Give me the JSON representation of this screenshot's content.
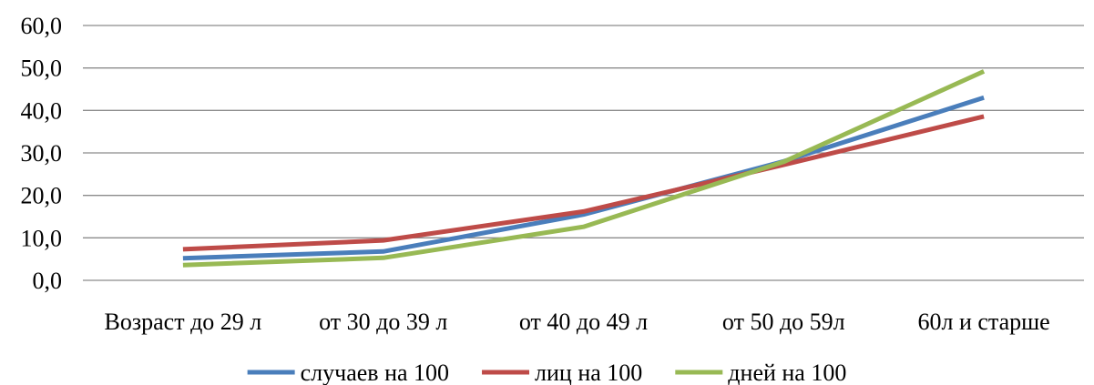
{
  "chart_data": {
    "type": "line",
    "categories": [
      "Возраст до 29 л",
      "от 30 до 39 л",
      "от 40 до 49 л",
      "от 50 до 59л",
      "60л и старше"
    ],
    "y_ticks": [
      "0,0",
      "10,0",
      "20,0",
      "30,0",
      "40,0",
      "50,0",
      "60,0"
    ],
    "ylim": [
      0,
      60
    ],
    "grid": true,
    "legend_position": "bottom",
    "series": [
      {
        "name": "случаев на 100",
        "color": "#4a7ebb",
        "values": [
          5.2,
          6.8,
          15.5,
          28.0,
          43.0
        ]
      },
      {
        "name": "лиц на 100",
        "color": "#be4b48",
        "values": [
          7.3,
          9.4,
          16.2,
          27.2,
          38.6
        ]
      },
      {
        "name": "дней на 100",
        "color": "#98b954",
        "values": [
          3.6,
          5.3,
          12.6,
          27.9,
          49.2
        ]
      }
    ]
  }
}
